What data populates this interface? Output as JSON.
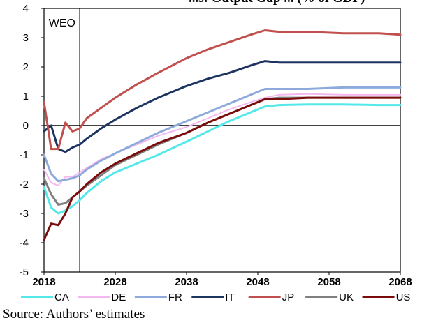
{
  "chart_data": {
    "type": "line",
    "title": "...s: Output Gap ... (% of GDP)",
    "xlabel": "",
    "ylabel": "",
    "xlim": [
      2018,
      2068
    ],
    "ylim": [
      -5,
      4
    ],
    "x_ticks": [
      2018,
      2028,
      2038,
      2048,
      2058,
      2068
    ],
    "y_ticks": [
      -5,
      -4,
      -3,
      -2,
      -1,
      0,
      1,
      2,
      3,
      4
    ],
    "grid": false,
    "legend_position": "bottom",
    "annotation": {
      "label": "WEO",
      "x": 2023
    },
    "series": [
      {
        "name": "CA",
        "color": "#55e8ea",
        "width": 3,
        "points": [
          [
            2018,
            -2.1
          ],
          [
            2019,
            -2.8
          ],
          [
            2020,
            -3.0
          ],
          [
            2021,
            -2.9
          ],
          [
            2022,
            -2.75
          ],
          [
            2023,
            -2.55
          ],
          [
            2024,
            -2.3
          ],
          [
            2026,
            -1.9
          ],
          [
            2028,
            -1.6
          ],
          [
            2031,
            -1.3
          ],
          [
            2034,
            -1.0
          ],
          [
            2038,
            -0.55
          ],
          [
            2041,
            -0.2
          ],
          [
            2044,
            0.15
          ],
          [
            2047,
            0.45
          ],
          [
            2049,
            0.65
          ],
          [
            2051,
            0.7
          ],
          [
            2055,
            0.72
          ],
          [
            2060,
            0.72
          ],
          [
            2065,
            0.7
          ],
          [
            2068,
            0.7
          ]
        ]
      },
      {
        "name": "DE",
        "color": "#f4b8ee",
        "width": 2,
        "points": [
          [
            2018,
            -1.5
          ],
          [
            2019,
            -1.95
          ],
          [
            2020,
            -2.05
          ],
          [
            2021,
            -1.75
          ],
          [
            2022,
            -1.75
          ],
          [
            2023,
            -1.6
          ],
          [
            2024,
            -1.45
          ],
          [
            2026,
            -1.15
          ],
          [
            2028,
            -0.95
          ],
          [
            2031,
            -0.65
          ],
          [
            2034,
            -0.35
          ],
          [
            2038,
            -0.05
          ],
          [
            2041,
            0.25
          ],
          [
            2044,
            0.55
          ],
          [
            2047,
            0.8
          ],
          [
            2049,
            0.95
          ],
          [
            2051,
            1.05
          ],
          [
            2055,
            1.08
          ],
          [
            2060,
            1.05
          ],
          [
            2065,
            1.05
          ],
          [
            2068,
            1.05
          ]
        ]
      },
      {
        "name": "FR",
        "color": "#8eaadc",
        "width": 3,
        "points": [
          [
            2018,
            -1.0
          ],
          [
            2019,
            -1.65
          ],
          [
            2020,
            -1.9
          ],
          [
            2021,
            -1.85
          ],
          [
            2022,
            -1.8
          ],
          [
            2023,
            -1.7
          ],
          [
            2024,
            -1.5
          ],
          [
            2026,
            -1.2
          ],
          [
            2028,
            -0.95
          ],
          [
            2031,
            -0.6
          ],
          [
            2034,
            -0.25
          ],
          [
            2038,
            0.15
          ],
          [
            2041,
            0.45
          ],
          [
            2044,
            0.75
          ],
          [
            2047,
            1.05
          ],
          [
            2049,
            1.25
          ],
          [
            2051,
            1.25
          ],
          [
            2055,
            1.25
          ],
          [
            2060,
            1.3
          ],
          [
            2065,
            1.3
          ],
          [
            2068,
            1.3
          ]
        ]
      },
      {
        "name": "IT",
        "color": "#1d3461",
        "width": 3,
        "points": [
          [
            2018,
            -0.2
          ],
          [
            2019,
            0.0
          ],
          [
            2020,
            -0.8
          ],
          [
            2021,
            -0.9
          ],
          [
            2022,
            -0.75
          ],
          [
            2023,
            -0.65
          ],
          [
            2024,
            -0.45
          ],
          [
            2026,
            -0.1
          ],
          [
            2028,
            0.2
          ],
          [
            2031,
            0.6
          ],
          [
            2034,
            0.95
          ],
          [
            2038,
            1.35
          ],
          [
            2041,
            1.6
          ],
          [
            2044,
            1.8
          ],
          [
            2047,
            2.05
          ],
          [
            2049,
            2.2
          ],
          [
            2051,
            2.15
          ],
          [
            2055,
            2.15
          ],
          [
            2060,
            2.15
          ],
          [
            2065,
            2.15
          ],
          [
            2068,
            2.15
          ]
        ]
      },
      {
        "name": "JP",
        "color": "#c0504d",
        "width": 3,
        "points": [
          [
            2018,
            0.8
          ],
          [
            2019,
            -0.8
          ],
          [
            2020,
            -0.8
          ],
          [
            2021,
            0.1
          ],
          [
            2022,
            -0.2
          ],
          [
            2023,
            -0.1
          ],
          [
            2024,
            0.25
          ],
          [
            2026,
            0.6
          ],
          [
            2028,
            0.95
          ],
          [
            2031,
            1.4
          ],
          [
            2034,
            1.8
          ],
          [
            2038,
            2.3
          ],
          [
            2041,
            2.6
          ],
          [
            2044,
            2.85
          ],
          [
            2047,
            3.1
          ],
          [
            2049,
            3.25
          ],
          [
            2051,
            3.2
          ],
          [
            2055,
            3.2
          ],
          [
            2060,
            3.15
          ],
          [
            2065,
            3.15
          ],
          [
            2068,
            3.1
          ]
        ]
      },
      {
        "name": "UK",
        "color": "#7f7f7f",
        "width": 3,
        "points": [
          [
            2018,
            -1.8
          ],
          [
            2019,
            -2.35
          ],
          [
            2020,
            -2.7
          ],
          [
            2021,
            -2.65
          ],
          [
            2022,
            -2.45
          ],
          [
            2023,
            -2.25
          ],
          [
            2024,
            -2.05
          ],
          [
            2026,
            -1.7
          ],
          [
            2028,
            -1.35
          ],
          [
            2031,
            -1.0
          ],
          [
            2034,
            -0.65
          ],
          [
            2038,
            -0.25
          ],
          [
            2041,
            0.1
          ],
          [
            2044,
            0.4
          ],
          [
            2047,
            0.7
          ],
          [
            2049,
            0.9
          ],
          [
            2051,
            0.95
          ],
          [
            2055,
            0.95
          ],
          [
            2060,
            0.95
          ],
          [
            2065,
            0.95
          ],
          [
            2068,
            0.95
          ]
        ]
      },
      {
        "name": "US",
        "color": "#7b0c0c",
        "width": 3,
        "points": [
          [
            2018,
            -3.9
          ],
          [
            2019,
            -3.35
          ],
          [
            2020,
            -3.4
          ],
          [
            2021,
            -3.0
          ],
          [
            2022,
            -2.45
          ],
          [
            2023,
            -2.25
          ],
          [
            2024,
            -2.0
          ],
          [
            2026,
            -1.6
          ],
          [
            2028,
            -1.3
          ],
          [
            2031,
            -0.95
          ],
          [
            2034,
            -0.6
          ],
          [
            2038,
            -0.25
          ],
          [
            2041,
            0.1
          ],
          [
            2044,
            0.4
          ],
          [
            2047,
            0.7
          ],
          [
            2049,
            0.9
          ],
          [
            2051,
            0.9
          ],
          [
            2055,
            0.95
          ],
          [
            2060,
            0.95
          ],
          [
            2065,
            0.95
          ],
          [
            2068,
            0.95
          ]
        ]
      }
    ]
  },
  "source": "Source: Authors’ estimates"
}
